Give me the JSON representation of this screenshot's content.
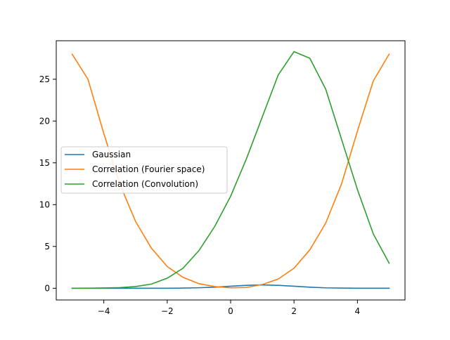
{
  "chart_data": {
    "type": "line",
    "title": "",
    "xlabel": "",
    "ylabel": "",
    "xlim": [
      -5.5,
      5.5
    ],
    "ylim": [
      -1.4,
      29.6
    ],
    "xticks": [
      -4,
      -2,
      0,
      2,
      4
    ],
    "xtick_labels": [
      "−4",
      "−2",
      "0",
      "2",
      "4"
    ],
    "yticks": [
      0,
      5,
      10,
      15,
      20,
      25
    ],
    "ytick_labels": [
      "0",
      "5",
      "10",
      "15",
      "20",
      "25"
    ],
    "grid": false,
    "legend_position": "center-left",
    "x": [
      -5,
      -4.5,
      -4,
      -3.5,
      -3,
      -2.5,
      -2,
      -1.5,
      -1,
      -0.5,
      0,
      0.5,
      1,
      1.5,
      2,
      2.5,
      3,
      3.5,
      4,
      4.5,
      5
    ],
    "series": [
      {
        "name": "Gaussian",
        "color": "#1f77b4",
        "values": [
          0.0,
          0.0,
          0.0,
          0.0,
          0.0,
          0.0,
          0.0,
          0.02,
          0.06,
          0.13,
          0.24,
          0.35,
          0.4,
          0.35,
          0.24,
          0.13,
          0.05,
          0.02,
          0.0,
          0.0,
          0.0
        ]
      },
      {
        "name": "Correlation (Fourier space)",
        "color": "#ff7f0e",
        "values": [
          28.0,
          25.0,
          18.5,
          12.5,
          8.0,
          4.8,
          2.6,
          1.3,
          0.55,
          0.2,
          0.05,
          0.1,
          0.45,
          1.1,
          2.4,
          4.6,
          7.8,
          12.5,
          18.8,
          24.8,
          28.0
        ]
      },
      {
        "name": "Correlation (Convolution)",
        "color": "#2ca02c",
        "values": [
          0.0,
          0.01,
          0.03,
          0.08,
          0.2,
          0.5,
          1.2,
          2.4,
          4.5,
          7.4,
          11.0,
          15.5,
          20.5,
          25.5,
          28.3,
          27.5,
          23.8,
          17.8,
          11.8,
          6.5,
          3.0
        ]
      }
    ]
  }
}
